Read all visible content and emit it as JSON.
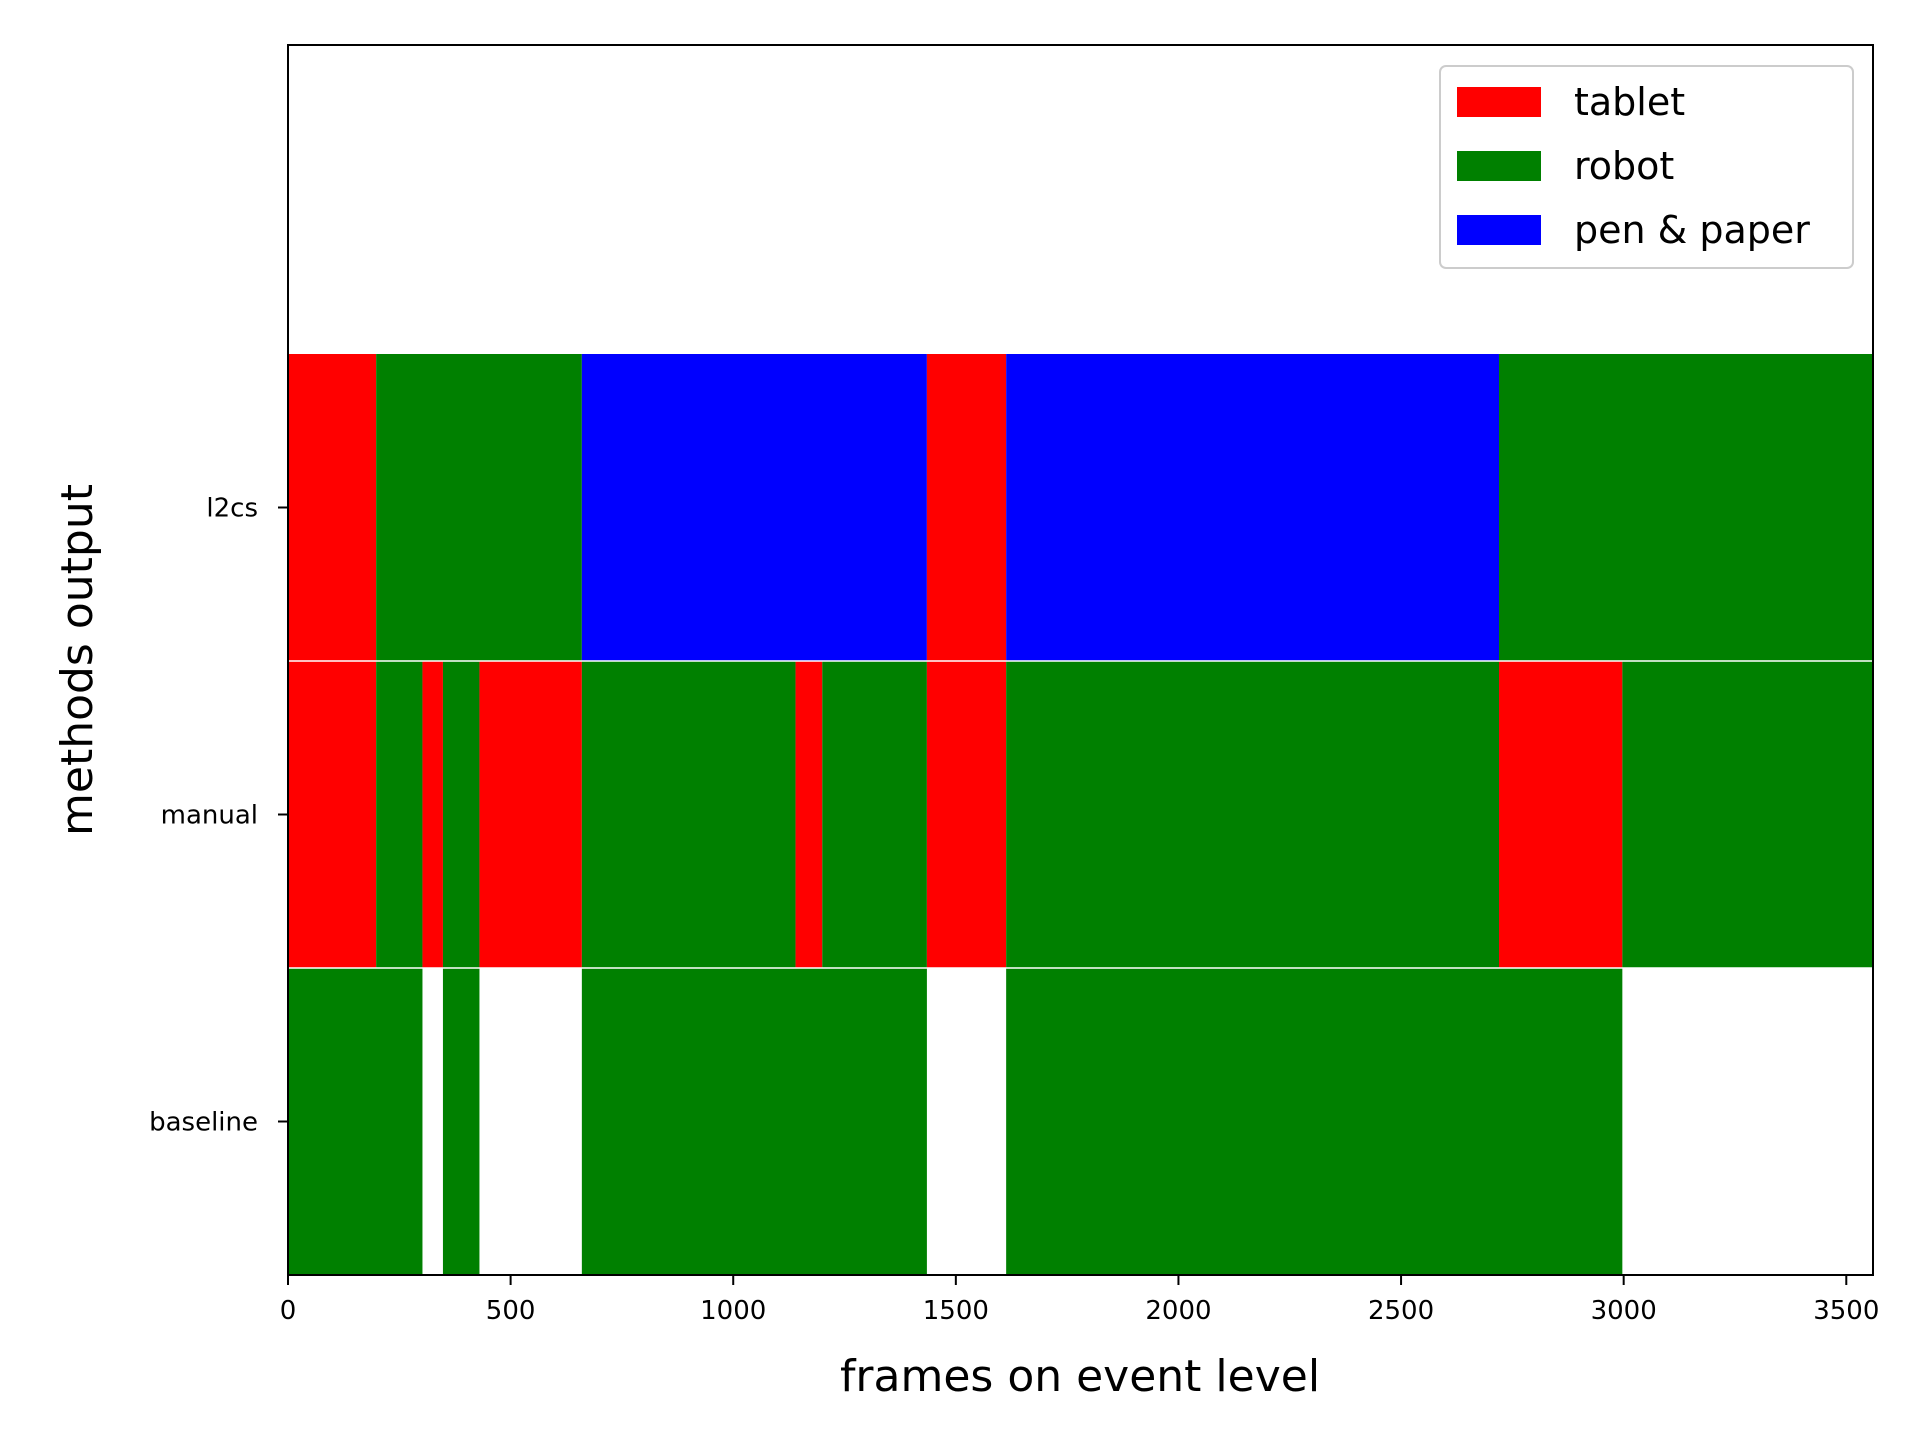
{
  "chart_data": {
    "type": "bar",
    "orientation": "horizontal-segments",
    "xlabel": "frames on event level",
    "ylabel": "methods output",
    "xlim": [
      0,
      3560
    ],
    "xticks": [
      0,
      500,
      1000,
      1500,
      2000,
      2500,
      3000,
      3500
    ],
    "xtick_labels": [
      "0",
      "500",
      "1000",
      "1500",
      "2000",
      "2500",
      "3000",
      "3500"
    ],
    "grid": false,
    "legend_position": "top-right",
    "legend": [
      {
        "name": "tablet",
        "color": "#ff0000"
      },
      {
        "name": "robot",
        "color": "#008000"
      },
      {
        "name": "pen & paper",
        "color": "#0000ff"
      }
    ],
    "rows": [
      {
        "label": "baseline",
        "segments": [
          {
            "start": 0,
            "end": 302,
            "category": "robot"
          },
          {
            "start": 348,
            "end": 430,
            "category": "robot"
          },
          {
            "start": 660,
            "end": 1435,
            "category": "robot"
          },
          {
            "start": 1613,
            "end": 2997,
            "category": "robot"
          }
        ]
      },
      {
        "label": "manual",
        "segments": [
          {
            "start": 0,
            "end": 198,
            "category": "tablet"
          },
          {
            "start": 198,
            "end": 302,
            "category": "robot"
          },
          {
            "start": 302,
            "end": 348,
            "category": "tablet"
          },
          {
            "start": 348,
            "end": 430,
            "category": "robot"
          },
          {
            "start": 430,
            "end": 660,
            "category": "tablet"
          },
          {
            "start": 660,
            "end": 1140,
            "category": "robot"
          },
          {
            "start": 1140,
            "end": 1200,
            "category": "tablet"
          },
          {
            "start": 1200,
            "end": 1435,
            "category": "robot"
          },
          {
            "start": 1435,
            "end": 1613,
            "category": "tablet"
          },
          {
            "start": 1613,
            "end": 2720,
            "category": "robot"
          },
          {
            "start": 2720,
            "end": 2997,
            "category": "tablet"
          },
          {
            "start": 2997,
            "end": 3560,
            "category": "robot"
          }
        ]
      },
      {
        "label": "l2cs",
        "segments": [
          {
            "start": 0,
            "end": 198,
            "category": "tablet"
          },
          {
            "start": 198,
            "end": 660,
            "category": "robot"
          },
          {
            "start": 660,
            "end": 1435,
            "category": "pen & paper"
          },
          {
            "start": 1435,
            "end": 1613,
            "category": "tablet"
          },
          {
            "start": 1613,
            "end": 2720,
            "category": "pen & paper"
          },
          {
            "start": 2720,
            "end": 3560,
            "category": "robot"
          }
        ]
      }
    ]
  }
}
